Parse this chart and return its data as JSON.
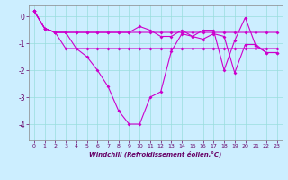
{
  "background_color": "#cceeff",
  "grid_color": "#99dddd",
  "line_color": "#cc00cc",
  "xlim": [
    -0.5,
    23.5
  ],
  "ylim": [
    -4.6,
    0.4
  ],
  "yticks": [
    0,
    -1,
    -2,
    -3,
    -4
  ],
  "xticks": [
    0,
    1,
    2,
    3,
    4,
    5,
    6,
    7,
    8,
    9,
    10,
    11,
    12,
    13,
    14,
    15,
    16,
    17,
    18,
    19,
    20,
    21,
    22,
    23
  ],
  "xlabel": "Windchill (Refroidissement éolien,°C)",
  "line1_x": [
    0,
    1,
    2,
    3,
    4,
    5,
    6,
    7,
    8,
    9,
    10,
    11,
    12,
    13,
    14,
    15,
    16,
    17,
    18,
    19,
    20,
    21,
    22,
    23
  ],
  "line1_y": [
    0.2,
    -0.45,
    -0.6,
    -0.6,
    -0.6,
    -0.6,
    -0.6,
    -0.6,
    -0.6,
    -0.6,
    -0.6,
    -0.6,
    -0.6,
    -0.6,
    -0.6,
    -0.6,
    -0.6,
    -0.6,
    -0.6,
    -0.6,
    -0.6,
    -0.6,
    -0.6,
    -0.6
  ],
  "line2_x": [
    0,
    1,
    2,
    3,
    4,
    5,
    6,
    7,
    8,
    9,
    10,
    11,
    12,
    13,
    14,
    15,
    16,
    17,
    18,
    19,
    20,
    21,
    22,
    23
  ],
  "line2_y": [
    0.2,
    -0.45,
    -0.6,
    -1.2,
    -1.2,
    -1.2,
    -1.2,
    -1.2,
    -1.2,
    -1.2,
    -1.2,
    -1.2,
    -1.2,
    -1.2,
    -1.2,
    -1.2,
    -1.2,
    -1.2,
    -1.2,
    -1.2,
    -1.2,
    -1.2,
    -1.2,
    -1.2
  ],
  "line3_x": [
    0,
    1,
    2,
    3,
    4,
    5,
    6,
    7,
    8,
    9,
    10,
    11,
    12,
    13,
    14,
    15,
    16,
    17,
    18,
    19,
    20,
    21,
    22,
    23
  ],
  "line3_y": [
    0.2,
    -0.45,
    -0.6,
    -0.6,
    -1.2,
    -1.5,
    -2.0,
    -2.6,
    -3.5,
    -4.0,
    -4.0,
    -3.0,
    -2.8,
    -1.3,
    -0.65,
    -0.75,
    -0.85,
    -0.65,
    -0.75,
    -2.1,
    -1.05,
    -1.05,
    -1.35,
    -1.35
  ],
  "line4_x": [
    0,
    1,
    2,
    3,
    4,
    5,
    6,
    7,
    8,
    9,
    10,
    11,
    12,
    13,
    14,
    15,
    16,
    17,
    18,
    19,
    20,
    21,
    22,
    23
  ],
  "line4_y": [
    0.2,
    -0.45,
    -0.6,
    -0.6,
    -0.6,
    -0.6,
    -0.6,
    -0.6,
    -0.6,
    -0.6,
    -0.38,
    -0.52,
    -0.75,
    -0.75,
    -0.52,
    -0.75,
    -0.52,
    -0.52,
    -2.0,
    -0.9,
    -0.05,
    -1.1,
    -1.35,
    -1.35
  ]
}
